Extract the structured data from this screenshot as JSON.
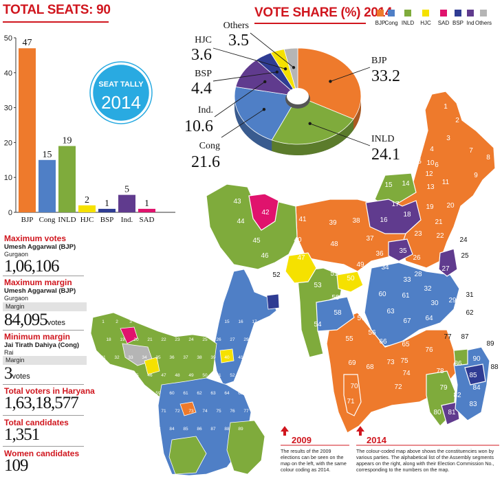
{
  "seats_panel": {
    "title": "TOTAL SEATS: 90",
    "badge_line1": "SEAT TALLY",
    "badge_line2": "2014"
  },
  "vote_panel": {
    "title": "VOTE SHARE (%) 2014"
  },
  "chart_data": [
    {
      "type": "bar",
      "title": "TOTAL SEATS: 90",
      "categories": [
        "BJP",
        "Cong",
        "INLD",
        "HJC",
        "BSP",
        "Ind.",
        "SAD"
      ],
      "values": [
        47,
        15,
        19,
        2,
        1,
        5,
        1
      ],
      "ylim": [
        0,
        50
      ],
      "yticks": [
        0,
        10,
        20,
        30,
        40,
        50
      ],
      "colors": [
        "#ee7a2c",
        "#4f7fc6",
        "#7fab3c",
        "#f5e100",
        "#2f3c93",
        "#603b8e",
        "#e0136d"
      ]
    },
    {
      "type": "pie",
      "title": "VOTE SHARE (%) 2014",
      "legend": [
        "BJP",
        "Cong",
        "INLD",
        "HJC",
        "SAD",
        "BSP",
        "Ind",
        "Others"
      ],
      "legend_colors": [
        "#ee7a2c",
        "#4f7fc6",
        "#7fab3c",
        "#f5e100",
        "#e0136d",
        "#2f3c93",
        "#603b8e",
        "#b5b5b5"
      ],
      "slices": [
        {
          "label": "BJP",
          "value": 33.2,
          "color": "#ee7a2c"
        },
        {
          "label": "INLD",
          "value": 24.1,
          "color": "#7fab3c"
        },
        {
          "label": "Cong",
          "value": 21.6,
          "color": "#4f7fc6"
        },
        {
          "label": "Ind.",
          "value": 10.6,
          "color": "#603b8e"
        },
        {
          "label": "BSP",
          "value": 4.4,
          "color": "#2f3c93"
        },
        {
          "label": "HJC",
          "value": 3.6,
          "color": "#f5e100"
        },
        {
          "label": "Others",
          "value": 3.5,
          "color": "#b5b5b5"
        }
      ]
    }
  ],
  "stats": {
    "max_votes": {
      "label": "Maximum votes",
      "name": "Umesh Aggarwal (BJP)",
      "place": "Gurgaon",
      "value": "1,06,106"
    },
    "max_margin": {
      "label": "Maximum margin",
      "name": "Umesh Aggarwal (BJP)",
      "place": "Gurgaon",
      "margin_label": "Margin",
      "value": "84,095",
      "unit": "votes"
    },
    "min_margin": {
      "label": "Minimum margin",
      "name": "Jai Tirath Dahiya (Cong)",
      "place": "Rai",
      "margin_label": "Margin",
      "value": "3",
      "unit": "votes"
    },
    "total_voters": {
      "label": "Total voters in Haryana",
      "value": "1,63,18,577"
    },
    "total_candidates": {
      "label": "Total candidates",
      "value": "1,351"
    },
    "women_candidates": {
      "label": "Women candidates",
      "value": "109"
    }
  },
  "maps": {
    "large_map_labels": [
      "1",
      "2",
      "3",
      "4",
      "5",
      "6",
      "7",
      "8",
      "9",
      "10",
      "11",
      "12",
      "13",
      "14",
      "15",
      "16",
      "17",
      "18",
      "19",
      "20",
      "21",
      "22",
      "23",
      "24",
      "25",
      "26",
      "27",
      "28",
      "29",
      "30",
      "31",
      "32",
      "33",
      "34",
      "35",
      "36",
      "37",
      "38",
      "39",
      "40",
      "41",
      "42",
      "43",
      "44",
      "45",
      "46",
      "47",
      "48",
      "49",
      "50",
      "51",
      "52",
      "53",
      "54",
      "55",
      "56",
      "57",
      "58",
      "59",
      "60",
      "61",
      "62",
      "63",
      "64",
      "65",
      "66",
      "67",
      "68",
      "69",
      "70",
      "71",
      "72",
      "73",
      "74",
      "75",
      "76",
      "77",
      "78",
      "79",
      "80",
      "81",
      "82",
      "83",
      "84",
      "85",
      "86",
      "87",
      "88",
      "89",
      "90"
    ],
    "small_map_labels": [
      "1",
      "2",
      "3",
      "6",
      "9",
      "10",
      "12",
      "13",
      "14",
      "15",
      "16",
      "17",
      "18",
      "19",
      "20",
      "21",
      "22",
      "23",
      "24",
      "25",
      "26",
      "27",
      "29",
      "30",
      "31",
      "32",
      "33",
      "34",
      "35",
      "36",
      "37",
      "38",
      "39",
      "40",
      "41",
      "42",
      "43",
      "44",
      "45",
      "46",
      "47",
      "48",
      "49",
      "50",
      "51",
      "52",
      "53",
      "54",
      "55",
      "56",
      "57",
      "58",
      "59",
      "60",
      "61",
      "62",
      "63",
      "64",
      "65",
      "66",
      "67",
      "68",
      "69",
      "70",
      "71",
      "72",
      "73",
      "74",
      "75",
      "76",
      "77",
      "78",
      "79",
      "80",
      "81",
      "82",
      "83",
      "84",
      "85",
      "86",
      "87",
      "88",
      "89"
    ]
  },
  "notes": {
    "n2009": {
      "title": "2009",
      "text": "The results of the 2009 elections can be seen on the map on the left, with the same colour coding as 2014."
    },
    "n2014": {
      "title": "2014",
      "text": "The colour-coded map above shows the constituencies won by various parties. The alphabetical list of the Assembly segments appears on the right, along with their Election Commission No., corresponding to the numbers on the map."
    }
  }
}
